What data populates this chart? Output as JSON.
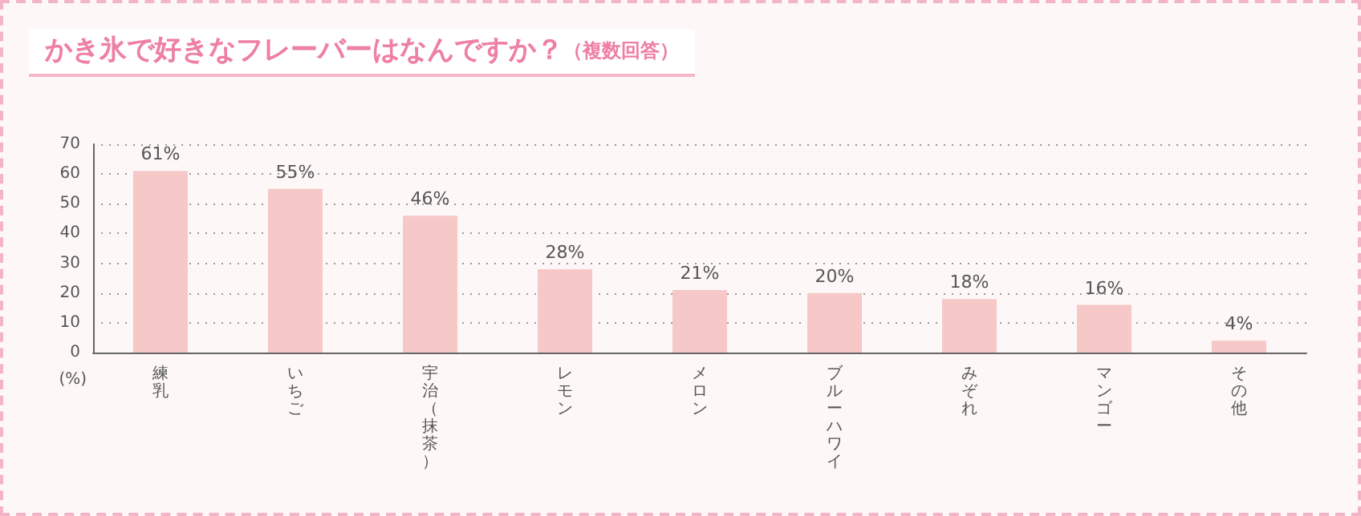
{
  "chart_data": {
    "type": "bar",
    "title": "かき氷で好きなフレーバーはなんですか？",
    "subtitle": "（複数回答）",
    "ylabel": "(%)",
    "categories": [
      "練乳",
      "いちご",
      "宇治（抹茶）",
      "レモン",
      "メロン",
      "ブルーハワイ",
      "みぞれ",
      "マンゴー",
      "その他"
    ],
    "values": [
      61,
      55,
      46,
      28,
      21,
      20,
      18,
      16,
      4
    ],
    "value_labels": [
      "61%",
      "55%",
      "46%",
      "28%",
      "21%",
      "20%",
      "18%",
      "16%",
      "4%"
    ],
    "color": "#f6c8c7",
    "ylim": [
      0,
      70
    ],
    "yticks": [
      0,
      10,
      20,
      30,
      40,
      50,
      60,
      70
    ],
    "grid": "y"
  }
}
